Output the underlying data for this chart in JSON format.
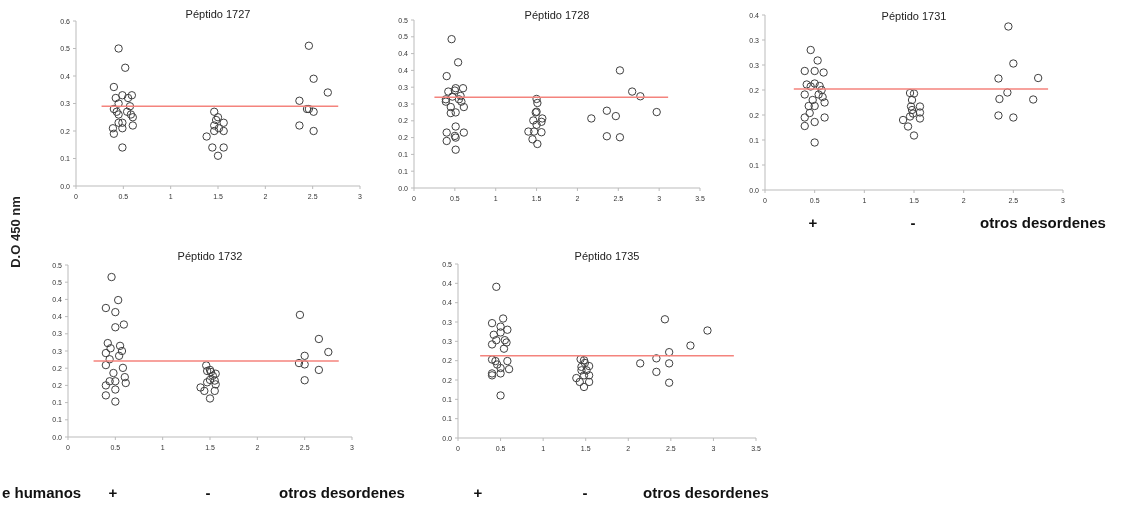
{
  "chart_data": [
    {
      "type": "scatter",
      "title": "Péptido 1727",
      "ylabel": "D.O 450 nm",
      "marker": "circle",
      "grid": false,
      "xlim": [
        0,
        3
      ],
      "xticks": [
        0,
        0.5,
        1,
        1.5,
        2,
        2.5,
        3
      ],
      "ylim": [
        0,
        0.6
      ],
      "yticks": [
        {
          "value": 0,
          "label": "0.0"
        },
        0.1,
        0.2,
        0.3,
        0.4,
        0.5,
        0.6
      ],
      "series": [
        {
          "color": "#404040",
          "x": [
            0.45,
            0.52,
            0.4,
            0.49,
            0.59,
            0.42,
            0.55,
            0.45,
            0.57,
            0.4,
            0.54,
            0.43,
            0.45,
            0.58,
            0.6,
            0.49,
            0.45,
            0.6,
            0.39,
            0.49,
            0.4,
            0.49,
            1.46,
            1.5,
            1.48,
            1.56,
            1.46,
            1.51,
            1.46,
            1.56,
            1.38,
            1.44,
            1.56,
            1.5,
            2.46,
            2.51,
            2.66,
            2.36,
            2.46,
            2.44,
            2.51,
            2.36,
            2.51
          ],
          "values": [
            0.5,
            0.43,
            0.36,
            0.33,
            0.33,
            0.32,
            0.32,
            0.3,
            0.29,
            0.28,
            0.27,
            0.27,
            0.26,
            0.26,
            0.25,
            0.23,
            0.23,
            0.22,
            0.21,
            0.21,
            0.19,
            0.14,
            0.27,
            0.25,
            0.24,
            0.23,
            0.22,
            0.21,
            0.2,
            0.2,
            0.18,
            0.14,
            0.14,
            0.11,
            0.51,
            0.39,
            0.34,
            0.31,
            0.28,
            0.28,
            0.27,
            0.22,
            0.2
          ]
        },
        {
          "type": "line",
          "marker": "none",
          "color": "#f4837d",
          "x": [
            0.27,
            2.77
          ],
          "values": [
            0.29,
            0.29
          ]
        }
      ]
    },
    {
      "type": "scatter",
      "title": "Péptido 1728",
      "marker": "circle",
      "grid": false,
      "xlim": [
        0,
        3.5
      ],
      "xticks": [
        0,
        0.5,
        1,
        1.5,
        2,
        2.5,
        3,
        3.5
      ],
      "ylim": [
        0,
        0.5
      ],
      "yticks": [
        {
          "value": 0,
          "label": "0.0"
        },
        {
          "value": 0.05,
          "label": "0.1"
        },
        {
          "value": 0.1,
          "label": "0.1"
        },
        {
          "value": 0.15,
          "label": "0.2"
        },
        {
          "value": 0.2,
          "label": "0.2"
        },
        {
          "value": 0.25,
          "label": "0.3"
        },
        {
          "value": 0.3,
          "label": "0.3"
        },
        {
          "value": 0.35,
          "label": "0.4"
        },
        {
          "value": 0.4,
          "label": "0.4"
        },
        {
          "value": 0.45,
          "label": "0.5"
        },
        {
          "value": 0.5,
          "label": "0.5"
        }
      ],
      "series": [
        {
          "color": "#404040",
          "x": [
            0.46,
            0.54,
            0.4,
            0.42,
            0.51,
            0.6,
            0.5,
            0.57,
            0.39,
            0.47,
            0.55,
            0.39,
            0.58,
            0.45,
            0.61,
            0.51,
            0.45,
            0.4,
            0.51,
            0.61,
            0.51,
            0.4,
            0.5,
            0.51,
            1.5,
            1.51,
            1.49,
            1.5,
            1.46,
            1.57,
            1.56,
            1.5,
            1.4,
            1.47,
            1.56,
            1.45,
            1.51,
            2.17,
            2.36,
            2.47,
            2.36,
            2.52,
            2.52,
            2.67,
            2.77,
            2.97
          ],
          "values": [
            0.443,
            0.374,
            0.333,
            0.287,
            0.297,
            0.297,
            0.29,
            0.274,
            0.264,
            0.272,
            0.264,
            0.257,
            0.257,
            0.241,
            0.241,
            0.225,
            0.223,
            0.165,
            0.183,
            0.165,
            0.15,
            0.14,
            0.155,
            0.114,
            0.265,
            0.253,
            0.225,
            0.227,
            0.201,
            0.207,
            0.197,
            0.188,
            0.168,
            0.168,
            0.166,
            0.145,
            0.131,
            0.207,
            0.23,
            0.214,
            0.154,
            0.151,
            0.35,
            0.287,
            0.273,
            0.226
          ]
        },
        {
          "type": "line",
          "marker": "none",
          "color": "#f4837d",
          "x": [
            0.25,
            3.11
          ],
          "values": [
            0.27,
            0.27
          ]
        }
      ]
    },
    {
      "type": "scatter",
      "title": "Péptido 1731",
      "marker": "circle",
      "grid": false,
      "xlim": [
        0,
        3
      ],
      "xticks": [
        0,
        0.5,
        1,
        1.5,
        2,
        2.5,
        3
      ],
      "ylim": [
        0,
        0.35
      ],
      "yticks": [
        {
          "value": 0,
          "label": "0.0"
        },
        {
          "value": 0.05,
          "label": "0.1"
        },
        {
          "value": 0.1,
          "label": "0.1"
        },
        {
          "value": 0.15,
          "label": "0.2"
        },
        {
          "value": 0.2,
          "label": "0.2"
        },
        {
          "value": 0.25,
          "label": "0.3"
        },
        {
          "value": 0.3,
          "label": "0.3"
        },
        {
          "value": 0.35,
          "label": "0.4"
        }
      ],
      "annotations": [
        "+",
        "-",
        "otros desordenes"
      ],
      "series": [
        {
          "color": "#404040",
          "x": [
            0.46,
            0.53,
            0.4,
            0.5,
            0.59,
            0.42,
            0.5,
            0.55,
            0.46,
            0.4,
            0.57,
            0.54,
            0.48,
            0.58,
            0.44,
            0.5,
            0.6,
            0.45,
            0.4,
            0.6,
            0.5,
            0.4,
            0.5,
            1.46,
            1.5,
            1.48,
            1.47,
            1.56,
            1.48,
            1.49,
            1.56,
            1.46,
            1.56,
            1.39,
            1.44,
            1.5,
            2.45,
            2.5,
            2.35,
            2.75,
            2.44,
            2.36,
            2.7,
            2.35,
            2.5
          ],
          "values": [
            0.28,
            0.259,
            0.238,
            0.238,
            0.235,
            0.211,
            0.213,
            0.208,
            0.207,
            0.191,
            0.2,
            0.191,
            0.18,
            0.186,
            0.168,
            0.168,
            0.175,
            0.154,
            0.145,
            0.145,
            0.136,
            0.128,
            0.095,
            0.194,
            0.193,
            0.18,
            0.167,
            0.167,
            0.16,
            0.153,
            0.155,
            0.147,
            0.143,
            0.14,
            0.127,
            0.109,
            0.327,
            0.253,
            0.223,
            0.224,
            0.195,
            0.182,
            0.181,
            0.149,
            0.145
          ]
        },
        {
          "type": "line",
          "marker": "none",
          "color": "#f4837d",
          "x": [
            0.29,
            2.85
          ],
          "values": [
            0.202,
            0.202
          ]
        }
      ]
    },
    {
      "type": "scatter",
      "title": "Péptido 1732",
      "marker": "circle",
      "grid": false,
      "xlim": [
        0,
        3
      ],
      "xticks": [
        0,
        0.5,
        1,
        1.5,
        2,
        2.5,
        3
      ],
      "ylim": [
        0,
        0.5
      ],
      "yticks": [
        {
          "value": 0,
          "label": "0.0"
        },
        {
          "value": 0.05,
          "label": "0.1"
        },
        {
          "value": 0.1,
          "label": "0.1"
        },
        {
          "value": 0.15,
          "label": "0.2"
        },
        {
          "value": 0.2,
          "label": "0.2"
        },
        {
          "value": 0.25,
          "label": "0.3"
        },
        {
          "value": 0.3,
          "label": "0.3"
        },
        {
          "value": 0.35,
          "label": "0.4"
        },
        {
          "value": 0.4,
          "label": "0.4"
        },
        {
          "value": 0.45,
          "label": "0.5"
        },
        {
          "value": 0.5,
          "label": "0.5"
        }
      ],
      "annotations": [
        "e humanos",
        "+",
        "-",
        "otros desordenes"
      ],
      "series": [
        {
          "color": "#404040",
          "x": [
            0.46,
            0.53,
            0.4,
            0.5,
            0.5,
            0.59,
            0.42,
            0.45,
            0.55,
            0.4,
            0.57,
            0.54,
            0.44,
            0.4,
            0.58,
            0.48,
            0.44,
            0.5,
            0.6,
            0.61,
            0.4,
            0.5,
            0.4,
            0.5,
            1.46,
            1.5,
            1.47,
            1.51,
            1.56,
            1.53,
            1.5,
            1.55,
            1.47,
            1.56,
            1.4,
            1.44,
            1.55,
            1.5,
            2.45,
            2.65,
            2.75,
            2.5,
            2.44,
            2.5,
            2.65,
            2.5
          ],
          "values": [
            0.465,
            0.398,
            0.375,
            0.363,
            0.319,
            0.327,
            0.273,
            0.258,
            0.265,
            0.244,
            0.25,
            0.236,
            0.226,
            0.209,
            0.201,
            0.186,
            0.162,
            0.162,
            0.174,
            0.157,
            0.15,
            0.138,
            0.121,
            0.103,
            0.208,
            0.195,
            0.192,
            0.189,
            0.184,
            0.178,
            0.166,
            0.164,
            0.159,
            0.153,
            0.144,
            0.134,
            0.134,
            0.112,
            0.355,
            0.285,
            0.247,
            0.236,
            0.215,
            0.211,
            0.195,
            0.165
          ]
        },
        {
          "type": "line",
          "marker": "none",
          "color": "#f4837d",
          "x": [
            0.27,
            2.86
          ],
          "values": [
            0.221,
            0.221
          ]
        }
      ]
    },
    {
      "type": "scatter",
      "title": "Péptido 1735",
      "marker": "circle",
      "grid": false,
      "xlim": [
        0,
        3.5
      ],
      "xticks": [
        0,
        0.5,
        1,
        1.5,
        2,
        2.5,
        3,
        3.5
      ],
      "ylim": [
        0,
        0.45
      ],
      "yticks": [
        {
          "value": 0,
          "label": "0.0"
        },
        {
          "value": 0.05,
          "label": "0.1"
        },
        {
          "value": 0.1,
          "label": "0.1"
        },
        {
          "value": 0.15,
          "label": "0.2"
        },
        {
          "value": 0.2,
          "label": "0.2"
        },
        {
          "value": 0.25,
          "label": "0.3"
        },
        {
          "value": 0.3,
          "label": "0.3"
        },
        {
          "value": 0.35,
          "label": "0.4"
        },
        {
          "value": 0.4,
          "label": "0.4"
        },
        {
          "value": 0.45,
          "label": "0.5"
        }
      ],
      "annotations": [
        "+",
        "-",
        "otros desordenes"
      ],
      "series": [
        {
          "color": "#404040",
          "x": [
            0.45,
            0.53,
            0.4,
            0.58,
            0.5,
            0.42,
            0.5,
            0.45,
            0.55,
            0.57,
            0.4,
            0.54,
            0.4,
            0.44,
            0.58,
            0.46,
            0.5,
            0.6,
            0.4,
            0.4,
            0.5,
            0.5,
            1.44,
            1.48,
            1.49,
            1.45,
            1.54,
            1.45,
            1.51,
            1.54,
            1.48,
            1.39,
            1.43,
            1.54,
            1.48,
            2.14,
            2.33,
            2.33,
            2.43,
            2.48,
            2.48,
            2.48,
            2.73,
            2.93
          ],
          "values": [
            0.391,
            0.309,
            0.297,
            0.28,
            0.288,
            0.267,
            0.273,
            0.253,
            0.253,
            0.247,
            0.242,
            0.231,
            0.203,
            0.199,
            0.199,
            0.19,
            0.181,
            0.178,
            0.167,
            0.162,
            0.167,
            0.11,
            0.204,
            0.201,
            0.194,
            0.184,
            0.186,
            0.175,
            0.175,
            0.162,
            0.162,
            0.155,
            0.145,
            0.145,
            0.132,
            0.193,
            0.206,
            0.171,
            0.307,
            0.222,
            0.193,
            0.143,
            0.239,
            0.278
          ]
        },
        {
          "type": "line",
          "marker": "none",
          "color": "#f4837d",
          "x": [
            0.26,
            3.24
          ],
          "values": [
            0.213,
            0.213
          ]
        }
      ]
    }
  ]
}
